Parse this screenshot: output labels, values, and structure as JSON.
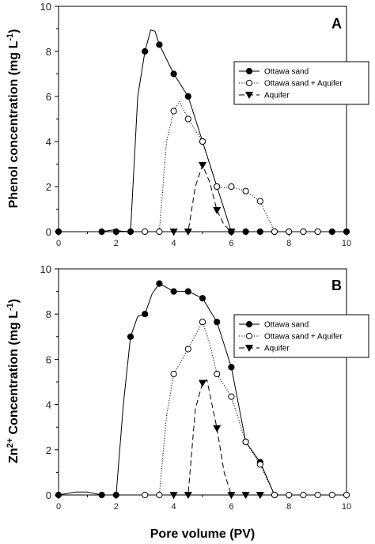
{
  "chart_data": [
    {
      "type": "line",
      "panel_label": "A",
      "ylabel_prefix": "Phenol concentration (mg L",
      "ylabel_sup": "-1",
      "ylabel_suffix": ")",
      "xlabel": "",
      "xlim": [
        0,
        10
      ],
      "ylim": [
        0,
        10
      ],
      "xticks": [
        0,
        2,
        4,
        6,
        8,
        10
      ],
      "yticks": [
        0,
        2,
        4,
        6,
        8,
        10
      ],
      "legend_position": "right",
      "series": [
        {
          "name": "Ottawa sand",
          "marker": "filled-circle",
          "line": "solid",
          "x": [
            0,
            1.5,
            2,
            2.5,
            3,
            3.5,
            4,
            4.5,
            5,
            5.5,
            6,
            6.5,
            7,
            7.5,
            8,
            8.5,
            9,
            9.5,
            10
          ],
          "y": [
            0,
            0,
            0,
            0,
            8.0,
            8.3,
            7.0,
            6.0,
            4.0,
            2.0,
            0,
            0,
            0,
            0,
            0,
            0,
            0,
            0,
            0
          ],
          "curve": [
            [
              0,
              0
            ],
            [
              1.5,
              0
            ],
            [
              1.9,
              0.08
            ],
            [
              2.2,
              0.02
            ],
            [
              2.5,
              0
            ],
            [
              2.75,
              6.0
            ],
            [
              3,
              8.0
            ],
            [
              3.2,
              8.95
            ],
            [
              3.35,
              8.9
            ],
            [
              3.5,
              8.3
            ],
            [
              4,
              7.0
            ],
            [
              4.5,
              6.0
            ],
            [
              5,
              4.0
            ],
            [
              5.5,
              2.0
            ],
            [
              6,
              0
            ],
            [
              6.5,
              0
            ],
            [
              7,
              0
            ],
            [
              10,
              0
            ]
          ]
        },
        {
          "name": "Ottawa sand + Aquifer",
          "marker": "open-circle",
          "line": "dotted",
          "x": [
            3,
            3.5,
            4,
            4.5,
            5,
            5.5,
            6,
            6.5,
            7,
            7.5,
            8,
            8.5,
            9
          ],
          "y": [
            0,
            0,
            5.35,
            5.0,
            4.0,
            2.0,
            2.0,
            1.8,
            1.35,
            0,
            0,
            0,
            0
          ],
          "curve": [
            [
              3,
              0
            ],
            [
              3.5,
              0
            ],
            [
              3.75,
              4.0
            ],
            [
              4,
              5.35
            ],
            [
              4.2,
              5.78
            ],
            [
              4.5,
              5.0
            ],
            [
              5,
              4.0
            ],
            [
              5.5,
              2.0
            ],
            [
              5.75,
              1.95
            ],
            [
              6,
              2.0
            ],
            [
              6.5,
              1.8
            ],
            [
              7,
              1.35
            ],
            [
              7.5,
              0
            ],
            [
              9,
              0
            ]
          ]
        },
        {
          "name": "Aquifer",
          "marker": "filled-triangle-down",
          "line": "dashed",
          "x": [
            4,
            4.5,
            5,
            5.5,
            6
          ],
          "y": [
            0,
            0,
            2.95,
            0.95,
            0
          ],
          "curve": [
            [
              4,
              0
            ],
            [
              4.5,
              0
            ],
            [
              4.75,
              2.0
            ],
            [
              5,
              2.95
            ],
            [
              5.25,
              2.2
            ],
            [
              5.5,
              0.95
            ],
            [
              5.75,
              0.3
            ],
            [
              6,
              0
            ]
          ]
        }
      ]
    },
    {
      "type": "line",
      "panel_label": "B",
      "ylabel_prefix": "Zn",
      "ylabel_sup": "2+",
      "ylabel_suffix": " Concentration (mg L",
      "ylabel_sup2": "-1",
      "ylabel_suffix2": ")",
      "xlabel": "Pore volume (PV)",
      "xlim": [
        0,
        10
      ],
      "ylim": [
        0,
        10
      ],
      "xticks": [
        0,
        2,
        4,
        6,
        8,
        10
      ],
      "yticks": [
        0,
        2,
        4,
        6,
        8,
        10
      ],
      "legend_position": "right",
      "series": [
        {
          "name": "Ottawa sand",
          "marker": "filled-circle",
          "line": "solid",
          "x": [
            0,
            1.5,
            2,
            2.5,
            3,
            3.5,
            4,
            4.5,
            5,
            5.5,
            6,
            6.5,
            7,
            7.5
          ],
          "y": [
            0,
            0,
            0,
            7.0,
            8.0,
            9.35,
            9.0,
            9.0,
            8.7,
            7.65,
            5.65,
            2.35,
            1.45,
            0
          ],
          "curve": [
            [
              0,
              0
            ],
            [
              0.6,
              0.13
            ],
            [
              1.0,
              0.13
            ],
            [
              1.5,
              0
            ],
            [
              2,
              0
            ],
            [
              2.25,
              4.0
            ],
            [
              2.5,
              7.0
            ],
            [
              2.75,
              7.9
            ],
            [
              3,
              8.0
            ],
            [
              3.25,
              8.9
            ],
            [
              3.5,
              9.35
            ],
            [
              4,
              9.0
            ],
            [
              4.5,
              9.0
            ],
            [
              5,
              8.7
            ],
            [
              5.5,
              7.65
            ],
            [
              6,
              5.65
            ],
            [
              6.5,
              2.35
            ],
            [
              7,
              1.45
            ],
            [
              7.5,
              0
            ]
          ]
        },
        {
          "name": "Ottawa sand + Aquifer",
          "marker": "open-circle",
          "line": "dotted",
          "x": [
            3,
            3.5,
            4,
            4.5,
            5,
            5.5,
            6,
            6.5,
            7,
            7.5,
            8,
            8.5,
            9,
            9.5,
            10
          ],
          "y": [
            0,
            0,
            5.35,
            6.45,
            7.65,
            5.35,
            4.35,
            2.35,
            1.35,
            0,
            0,
            0,
            0,
            0,
            0
          ],
          "curve": [
            [
              3,
              0
            ],
            [
              3.5,
              0
            ],
            [
              3.75,
              3.5
            ],
            [
              4,
              5.35
            ],
            [
              4.5,
              6.45
            ],
            [
              5,
              7.65
            ],
            [
              5.25,
              6.7
            ],
            [
              5.5,
              5.35
            ],
            [
              6,
              4.35
            ],
            [
              6.5,
              2.35
            ],
            [
              7,
              1.35
            ],
            [
              7.5,
              0
            ],
            [
              10,
              0
            ]
          ]
        },
        {
          "name": "Aquifer",
          "marker": "filled-triangle-down",
          "line": "dashed",
          "x": [
            4,
            4.5,
            5,
            5.5,
            6,
            6.5,
            7
          ],
          "y": [
            0,
            0,
            4.95,
            2.95,
            0,
            0,
            0
          ],
          "curve": [
            [
              4,
              0
            ],
            [
              4.5,
              0
            ],
            [
              4.75,
              3.8
            ],
            [
              5,
              4.95
            ],
            [
              5.15,
              5.1
            ],
            [
              5.5,
              2.95
            ],
            [
              5.75,
              1.0
            ],
            [
              6,
              0
            ],
            [
              7,
              0
            ]
          ]
        }
      ]
    }
  ]
}
